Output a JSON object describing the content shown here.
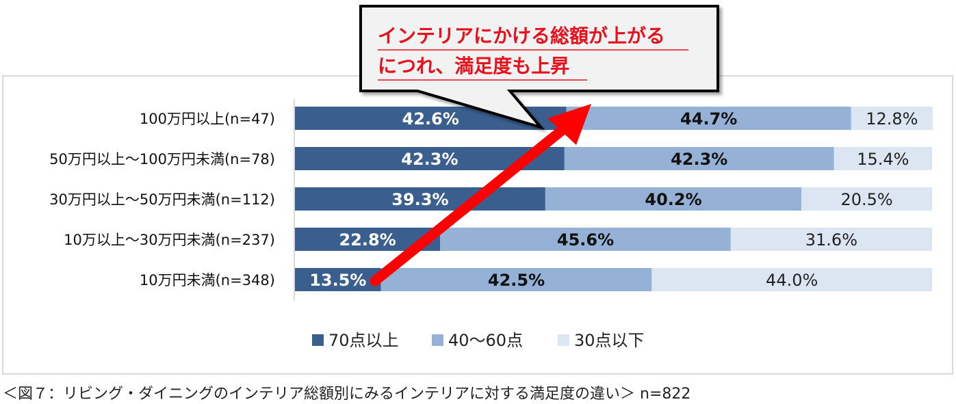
{
  "chart_data": {
    "type": "bar",
    "orientation": "horizontal",
    "stacked": true,
    "percent": true,
    "categories": [
      "100万円以上(n=47)",
      "50万円以上〜100万円未満(n=78)",
      "30万円以上〜50万円未満(n=112)",
      "10万以上〜30万円未満(n=237)",
      "10万円未満(n=348)"
    ],
    "series": [
      {
        "name": "70点以上",
        "color": "#3a5f8f",
        "values": [
          42.6,
          42.3,
          39.3,
          22.8,
          13.5
        ],
        "labels": [
          "42.6%",
          "42.3%",
          "39.3%",
          "22.8%",
          "13.5%"
        ]
      },
      {
        "name": "40〜60点",
        "color": "#95b2d6",
        "values": [
          44.7,
          42.3,
          40.2,
          45.6,
          42.5
        ],
        "labels": [
          "44.7%",
          "42.3%",
          "40.2%",
          "45.6%",
          "42.5%"
        ]
      },
      {
        "name": "30点以下",
        "color": "#dce6f2",
        "values": [
          12.8,
          15.4,
          20.5,
          31.6,
          44.0
        ],
        "labels": [
          "12.8%",
          "15.4%",
          "20.5%",
          "31.6%",
          "44.0%"
        ]
      }
    ],
    "xlim": [
      0,
      100
    ],
    "legend": "bottom",
    "grid": false,
    "annotation": {
      "lines": [
        "インテリアにかける総額が上がる",
        "につれ、満足度も上昇"
      ],
      "text_color": "#e8101a",
      "arrow_color": "#ff0000"
    }
  },
  "caption": "＜図７：リビング・ダイニングのインテリア総額別にみるインテリアに対する満足度の違い＞ n=822"
}
